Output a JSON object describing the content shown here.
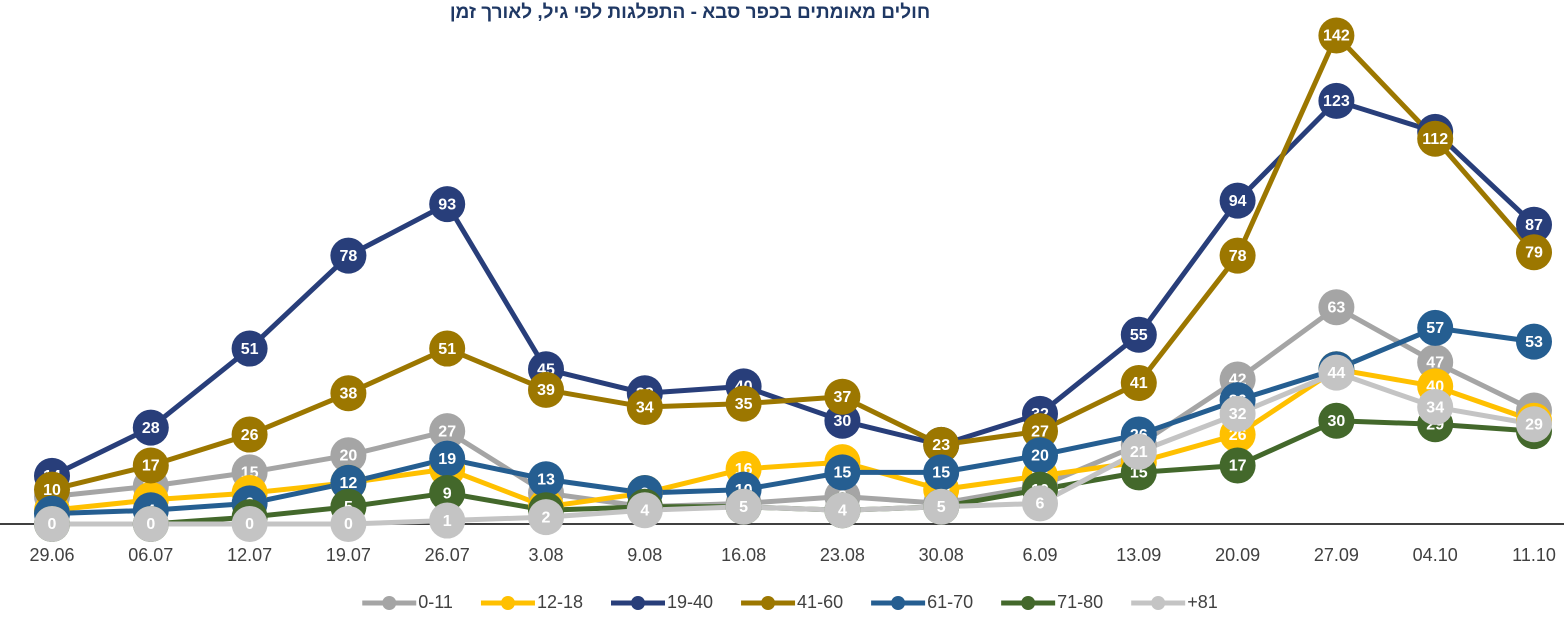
{
  "chart_data": {
    "type": "line",
    "title": "חולים מאומתים בכפר סבא - התפלגות לפי גיל, לאורך זמן",
    "categories": [
      "29.06",
      "06.07",
      "12.07",
      "19.07",
      "26.07",
      "3.08",
      "9.08",
      "16.08",
      "23.08",
      "30.08",
      "6.09",
      "13.09",
      "20.09",
      "27.09",
      "04.10",
      "11.10"
    ],
    "ylim": [
      0,
      150
    ],
    "legend": "bottom",
    "series": [
      {
        "name": "0-11",
        "color": "#a5a5a5",
        "values": [
          8,
          11,
          15,
          20,
          27,
          9,
          5,
          6,
          8,
          6,
          11,
          23,
          42,
          63,
          47,
          33
        ]
      },
      {
        "name": "12-18",
        "color": "#ffc000",
        "values": [
          4,
          7,
          9,
          12,
          16,
          5,
          9,
          16,
          18,
          10,
          14,
          18,
          26,
          45,
          40,
          30
        ]
      },
      {
        "name": "19-40",
        "color": "#283e7a",
        "values": [
          14,
          28,
          51,
          78,
          93,
          45,
          38,
          40,
          30,
          23,
          32,
          55,
          94,
          123,
          114,
          87
        ]
      },
      {
        "name": "41-60",
        "color": "#9c7700",
        "values": [
          10,
          17,
          26,
          38,
          51,
          39,
          34,
          35,
          37,
          23,
          27,
          41,
          78,
          142,
          112,
          79
        ]
      },
      {
        "name": "61-70",
        "color": "#255e91",
        "values": [
          3,
          4,
          6,
          12,
          19,
          13,
          9,
          10,
          15,
          15,
          20,
          26,
          36,
          45,
          57,
          53
        ]
      },
      {
        "name": "71-80",
        "color": "#43682b",
        "values": [
          0,
          0,
          2,
          5,
          9,
          4,
          5,
          5,
          4,
          5,
          10,
          15,
          17,
          30,
          29,
          27
        ]
      },
      {
        "name": "+81",
        "color": "#c4c4c4",
        "values": [
          0,
          0,
          0,
          0,
          1,
          2,
          4,
          5,
          4,
          5,
          6,
          21,
          32,
          44,
          34,
          29
        ]
      }
    ]
  }
}
